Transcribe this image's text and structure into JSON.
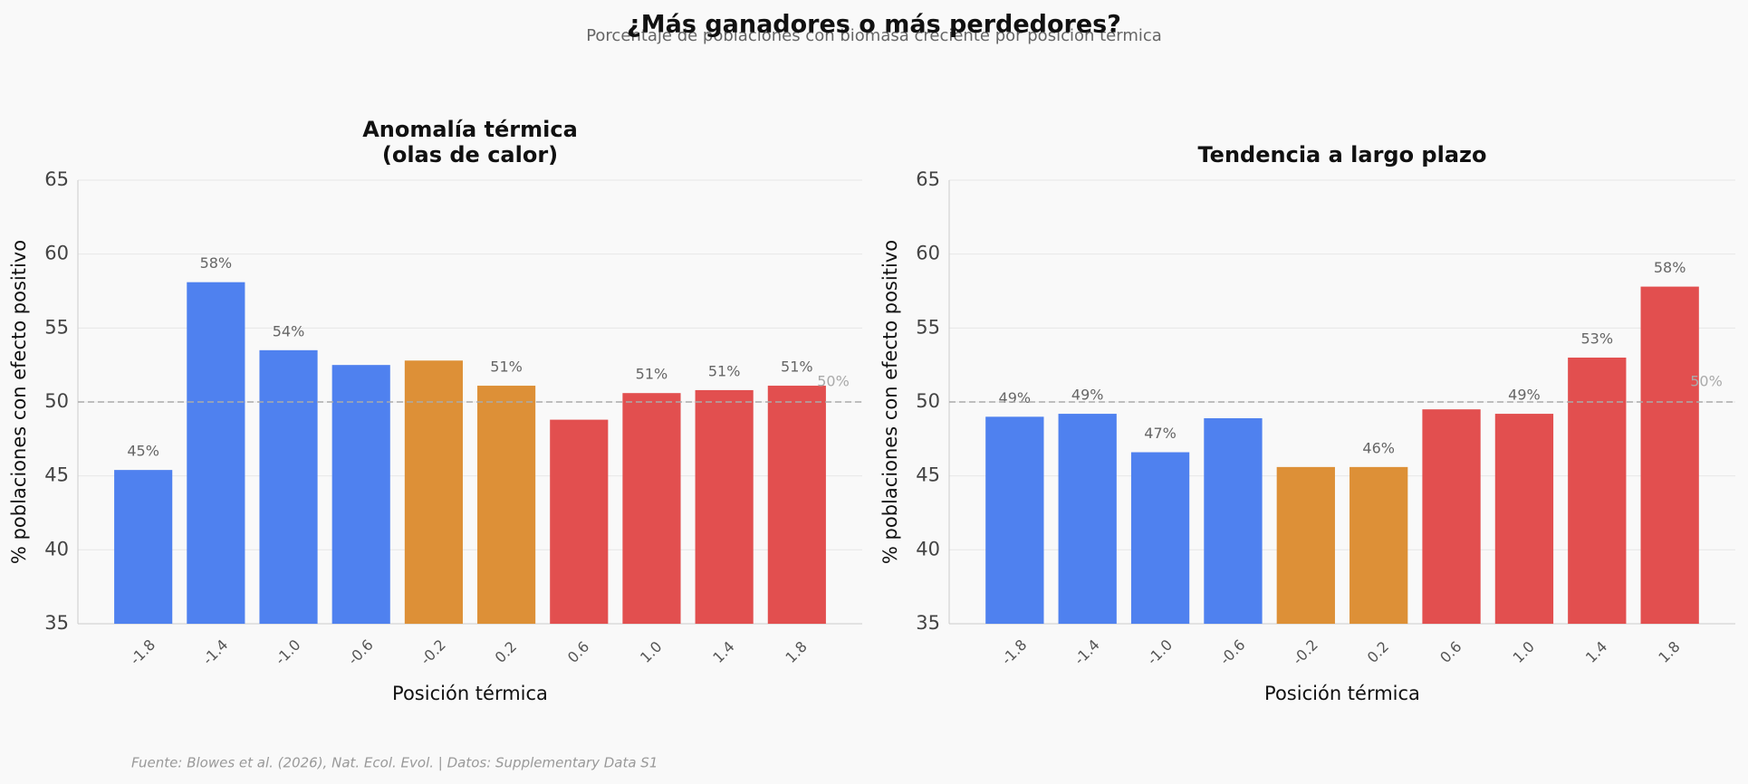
{
  "title": "¿Más ganadores o más perdedores?",
  "subtitle": "Porcentaje de poblaciones con biomasa creciente por posición térmica",
  "source": "Fuente: Blowes et al. (2026), Nat. Ecol. Evol. | Datos: Supplementary Data S1",
  "chart_data": [
    {
      "type": "bar",
      "title": "Anomalía térmica\n(olas de calor)",
      "xlabel": "Posición térmica",
      "ylabel": "% poblaciones con efecto positivo",
      "categories": [
        "-1.8",
        "-1.4",
        "-1.0",
        "-0.6",
        "-0.2",
        "0.2",
        "0.6",
        "1.0",
        "1.4",
        "1.8"
      ],
      "values": [
        45.4,
        58.1,
        53.5,
        52.5,
        52.8,
        51.1,
        48.8,
        50.6,
        50.8,
        51.1
      ],
      "value_labels": [
        "45%",
        "58%",
        "54%",
        null,
        null,
        "51%",
        null,
        "51%",
        "51%",
        "51%"
      ],
      "colors": [
        "#4f81ef",
        "#4f81ef",
        "#4f81ef",
        "#4f81ef",
        "#dd9037",
        "#dd9037",
        "#e24f4f",
        "#e24f4f",
        "#e24f4f",
        "#e24f4f"
      ],
      "ylim": [
        35,
        65
      ],
      "yticks": [
        35,
        40,
        45,
        50,
        55,
        60,
        65
      ],
      "grid": true,
      "reference_line": {
        "value": 50,
        "label": "50%"
      }
    },
    {
      "type": "bar",
      "title": "Tendencia a largo plazo",
      "xlabel": "Posición térmica",
      "ylabel": "% poblaciones con efecto positivo",
      "categories": [
        "-1.8",
        "-1.4",
        "-1.0",
        "-0.6",
        "-0.2",
        "0.2",
        "0.6",
        "1.0",
        "1.4",
        "1.8"
      ],
      "values": [
        49.0,
        49.2,
        46.6,
        48.9,
        45.6,
        45.6,
        49.5,
        49.2,
        53.0,
        57.8
      ],
      "value_labels": [
        "49%",
        "49%",
        "47%",
        null,
        null,
        "46%",
        null,
        "49%",
        "53%",
        "58%"
      ],
      "colors": [
        "#4f81ef",
        "#4f81ef",
        "#4f81ef",
        "#4f81ef",
        "#dd9037",
        "#dd9037",
        "#e24f4f",
        "#e24f4f",
        "#e24f4f",
        "#e24f4f"
      ],
      "ylim": [
        35,
        65
      ],
      "yticks": [
        35,
        40,
        45,
        50,
        55,
        60,
        65
      ],
      "grid": true,
      "reference_line": {
        "value": 50,
        "label": "50%"
      }
    }
  ]
}
